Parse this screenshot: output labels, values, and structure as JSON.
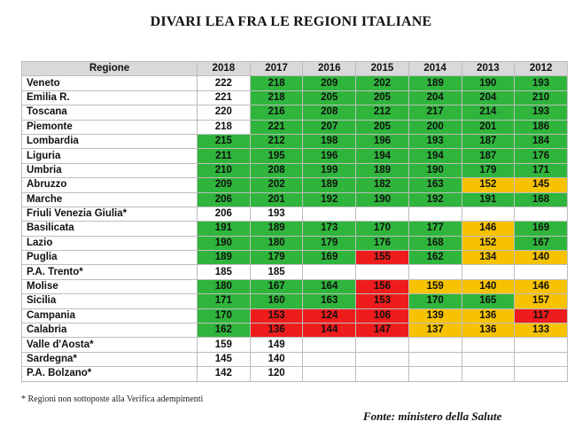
{
  "title": "DIVARI LEA FRA LE REGIONI ITALIANE",
  "colors": {
    "green": "#2fb53c",
    "yellow": "#f7c200",
    "red": "#ee1c1c",
    "white": "#ffffff",
    "header": "#d9d9d9"
  },
  "table": {
    "headers": [
      "Regione",
      "2018",
      "2017",
      "2016",
      "2015",
      "2014",
      "2013",
      "2012"
    ],
    "rows": [
      {
        "region": "Veneto",
        "values": [
          "222",
          "218",
          "209",
          "202",
          "189",
          "190",
          "193"
        ],
        "status": [
          "w",
          "g",
          "g",
          "g",
          "g",
          "g",
          "g"
        ]
      },
      {
        "region": "Emilia R.",
        "values": [
          "221",
          "218",
          "205",
          "205",
          "204",
          "204",
          "210"
        ],
        "status": [
          "w",
          "g",
          "g",
          "g",
          "g",
          "g",
          "g"
        ]
      },
      {
        "region": "Toscana",
        "values": [
          "220",
          "216",
          "208",
          "212",
          "217",
          "214",
          "193"
        ],
        "status": [
          "w",
          "g",
          "g",
          "g",
          "g",
          "g",
          "g"
        ]
      },
      {
        "region": "Piemonte",
        "values": [
          "218",
          "221",
          "207",
          "205",
          "200",
          "201",
          "186"
        ],
        "status": [
          "w",
          "g",
          "g",
          "g",
          "g",
          "g",
          "g"
        ]
      },
      {
        "region": "Lombardia",
        "values": [
          "215",
          "212",
          "198",
          "196",
          "193",
          "187",
          "184"
        ],
        "status": [
          "g",
          "g",
          "g",
          "g",
          "g",
          "g",
          "g"
        ]
      },
      {
        "region": "Liguria",
        "values": [
          "211",
          "195",
          "196",
          "194",
          "194",
          "187",
          "176"
        ],
        "status": [
          "g",
          "g",
          "g",
          "g",
          "g",
          "g",
          "g"
        ]
      },
      {
        "region": "Umbria",
        "values": [
          "210",
          "208",
          "199",
          "189",
          "190",
          "179",
          "171"
        ],
        "status": [
          "g",
          "g",
          "g",
          "g",
          "g",
          "g",
          "g"
        ]
      },
      {
        "region": "Abruzzo",
        "values": [
          "209",
          "202",
          "189",
          "182",
          "163",
          "152",
          "145"
        ],
        "status": [
          "g",
          "g",
          "g",
          "g",
          "g",
          "y",
          "y"
        ]
      },
      {
        "region": "Marche",
        "values": [
          "206",
          "201",
          "192",
          "190",
          "192",
          "191",
          "168"
        ],
        "status": [
          "g",
          "g",
          "g",
          "g",
          "g",
          "g",
          "g"
        ]
      },
      {
        "region": "Friuli Venezia Giulia*",
        "values": [
          "206",
          "193",
          "",
          "",
          "",
          "",
          ""
        ],
        "status": [
          "w",
          "w",
          "w",
          "w",
          "w",
          "w",
          "w"
        ]
      },
      {
        "region": "Basilicata",
        "values": [
          "191",
          "189",
          "173",
          "170",
          "177",
          "146",
          "169"
        ],
        "status": [
          "g",
          "g",
          "g",
          "g",
          "g",
          "y",
          "g"
        ]
      },
      {
        "region": "Lazio",
        "values": [
          "190",
          "180",
          "179",
          "176",
          "168",
          "152",
          "167"
        ],
        "status": [
          "g",
          "g",
          "g",
          "g",
          "g",
          "y",
          "g"
        ]
      },
      {
        "region": "Puglia",
        "values": [
          "189",
          "179",
          "169",
          "155",
          "162",
          "134",
          "140"
        ],
        "status": [
          "g",
          "g",
          "g",
          "r",
          "g",
          "y",
          "y"
        ]
      },
      {
        "region": "P.A. Trento*",
        "values": [
          "185",
          "185",
          "",
          "",
          "",
          "",
          ""
        ],
        "status": [
          "w",
          "w",
          "w",
          "w",
          "w",
          "w",
          "w"
        ]
      },
      {
        "region": "Molise",
        "values": [
          "180",
          "167",
          "164",
          "156",
          "159",
          "140",
          "146"
        ],
        "status": [
          "g",
          "g",
          "g",
          "r",
          "y",
          "y",
          "y"
        ]
      },
      {
        "region": "Sicilia",
        "values": [
          "171",
          "160",
          "163",
          "153",
          "170",
          "165",
          "157"
        ],
        "status": [
          "g",
          "g",
          "g",
          "r",
          "g",
          "g",
          "y"
        ]
      },
      {
        "region": "Campania",
        "values": [
          "170",
          "153",
          "124",
          "106",
          "139",
          "136",
          "117"
        ],
        "status": [
          "g",
          "r",
          "r",
          "r",
          "y",
          "y",
          "r"
        ]
      },
      {
        "region": "Calabria",
        "values": [
          "162",
          "136",
          "144",
          "147",
          "137",
          "136",
          "133"
        ],
        "status": [
          "g",
          "r",
          "r",
          "r",
          "y",
          "y",
          "y"
        ]
      },
      {
        "region": "Valle d'Aosta*",
        "values": [
          "159",
          "149",
          "",
          "",
          "",
          "",
          ""
        ],
        "status": [
          "w",
          "w",
          "w",
          "w",
          "w",
          "w",
          "w"
        ]
      },
      {
        "region": "Sardegna*",
        "values": [
          "145",
          "140",
          "",
          "",
          "",
          "",
          ""
        ],
        "status": [
          "w",
          "w",
          "w",
          "w",
          "w",
          "w",
          "w"
        ]
      },
      {
        "region": "P.A. Bolzano*",
        "values": [
          "142",
          "120",
          "",
          "",
          "",
          "",
          ""
        ],
        "status": [
          "w",
          "w",
          "w",
          "w",
          "w",
          "w",
          "w"
        ]
      }
    ]
  },
  "footnote": "* Regioni non sottoposte alla Verifica adempimenti",
  "source": "Fonte: ministero della Salute"
}
